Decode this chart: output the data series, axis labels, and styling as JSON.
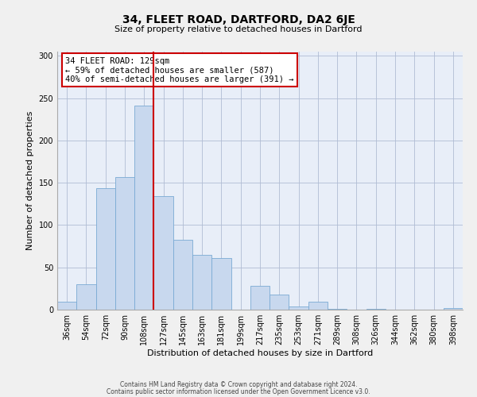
{
  "title": "34, FLEET ROAD, DARTFORD, DA2 6JE",
  "subtitle": "Size of property relative to detached houses in Dartford",
  "xlabel": "Distribution of detached houses by size in Dartford",
  "ylabel": "Number of detached properties",
  "bar_labels": [
    "36sqm",
    "54sqm",
    "72sqm",
    "90sqm",
    "108sqm",
    "127sqm",
    "145sqm",
    "163sqm",
    "181sqm",
    "199sqm",
    "217sqm",
    "235sqm",
    "253sqm",
    "271sqm",
    "289sqm",
    "308sqm",
    "326sqm",
    "344sqm",
    "362sqm",
    "380sqm",
    "398sqm"
  ],
  "bar_values": [
    9,
    30,
    144,
    157,
    241,
    134,
    83,
    65,
    61,
    0,
    28,
    18,
    4,
    9,
    1,
    0,
    1,
    0,
    0,
    0,
    2
  ],
  "bar_color": "#c8d8ee",
  "bar_edge_color": "#7aaad4",
  "vline_x_index": 4.5,
  "vline_color": "#cc0000",
  "annotation_text": "34 FLEET ROAD: 129sqm\n← 59% of detached houses are smaller (587)\n40% of semi-detached houses are larger (391) →",
  "annotation_box_color": "#ffffff",
  "annotation_box_edge": "#cc0000",
  "ylim": [
    0,
    305
  ],
  "yticks": [
    0,
    50,
    100,
    150,
    200,
    250,
    300
  ],
  "footer1": "Contains HM Land Registry data © Crown copyright and database right 2024.",
  "footer2": "Contains public sector information licensed under the Open Government Licence v3.0.",
  "bg_color": "#f0f0f0",
  "plot_bg_color": "#e8eef8",
  "grid_color": "#b0bcd4"
}
